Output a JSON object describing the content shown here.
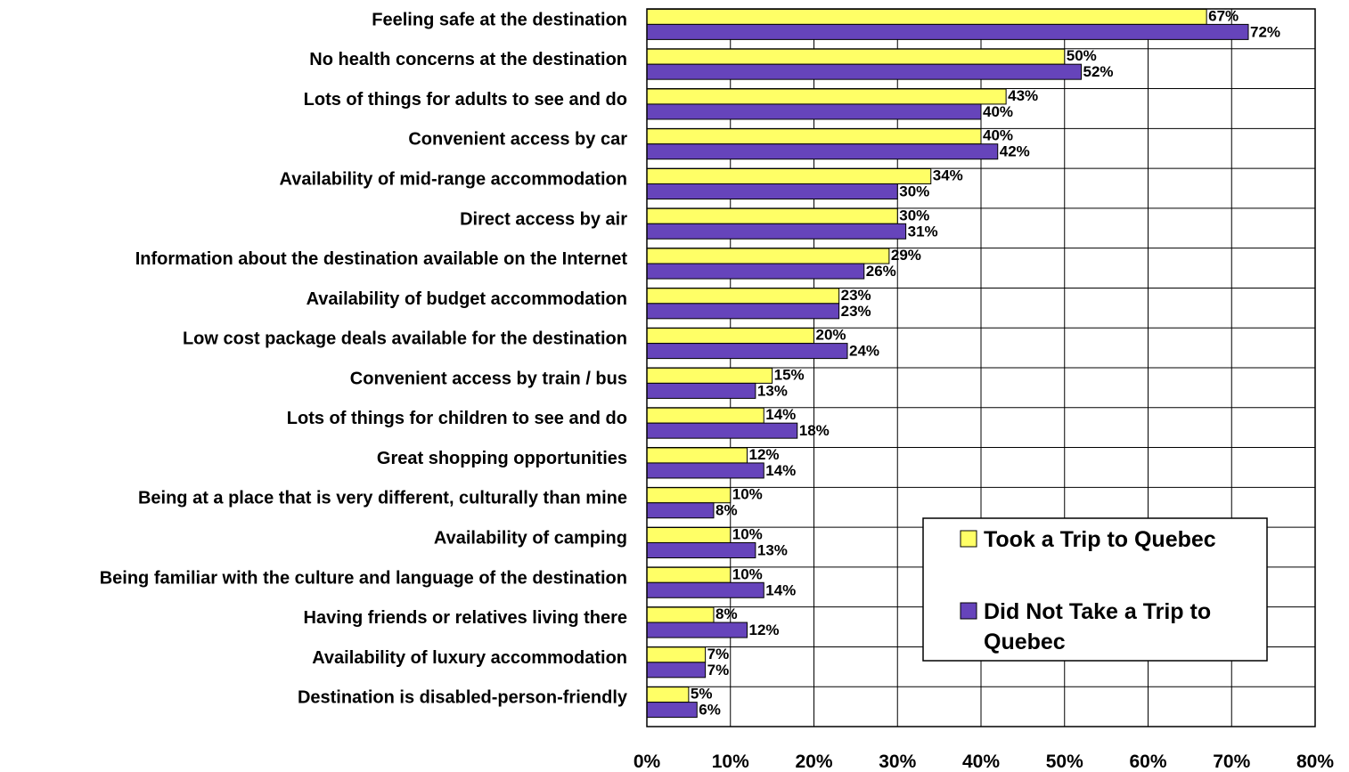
{
  "chart_data": {
    "type": "bar",
    "orientation": "horizontal",
    "title": "",
    "xlabel": "",
    "ylabel": "",
    "xlim": [
      0,
      80
    ],
    "x_ticks": [
      "0%",
      "10%",
      "20%",
      "30%",
      "40%",
      "50%",
      "60%",
      "70%",
      "80%"
    ],
    "grid": true,
    "legend_position": "bottom-right",
    "categories": [
      "Feeling safe at the destination",
      "No health concerns at the destination",
      "Lots of things for adults to see and do",
      "Convenient access by car",
      "Availability of mid-range accommodation",
      "Direct access by air",
      "Information about the destination available on the Internet",
      "Availability of budget accommodation",
      "Low cost package deals available for the destination",
      "Convenient access by train / bus",
      "Lots of things for children to see and do",
      "Great shopping opportunities",
      "Being at a place that is very different, culturally than mine",
      "Availability of camping",
      "Being familiar with the culture and language of the destination",
      "Having friends or relatives living there",
      "Availability of luxury accommodation",
      "Destination is disabled-person-friendly"
    ],
    "series": [
      {
        "name": "Took a Trip to Quebec",
        "color": "#FFFF66",
        "values": [
          67,
          50,
          43,
          40,
          34,
          30,
          29,
          23,
          20,
          15,
          14,
          12,
          10,
          10,
          10,
          8,
          7,
          5
        ],
        "labels": [
          "67%",
          "50%",
          "43%",
          "40%",
          "34%",
          "30%",
          "29%",
          "23%",
          "20%",
          "15%",
          "14%",
          "12%",
          "10%",
          "10%",
          "10%",
          "8%",
          "7%",
          "5%"
        ]
      },
      {
        "name": "Did Not Take a Trip to Quebec",
        "color": "#6644BB",
        "values": [
          72,
          52,
          40,
          42,
          30,
          31,
          26,
          23,
          24,
          13,
          18,
          14,
          8,
          13,
          14,
          12,
          7,
          6
        ],
        "labels": [
          "72%",
          "52%",
          "40%",
          "42%",
          "30%",
          "31%",
          "26%",
          "23%",
          "24%",
          "13%",
          "18%",
          "14%",
          "8%",
          "13%",
          "14%",
          "12%",
          "7%",
          "6%"
        ]
      }
    ]
  },
  "legend": {
    "line1": "Took a Trip to Quebec",
    "line2a": "Did Not Take a Trip to",
    "line2b": "Quebec"
  }
}
